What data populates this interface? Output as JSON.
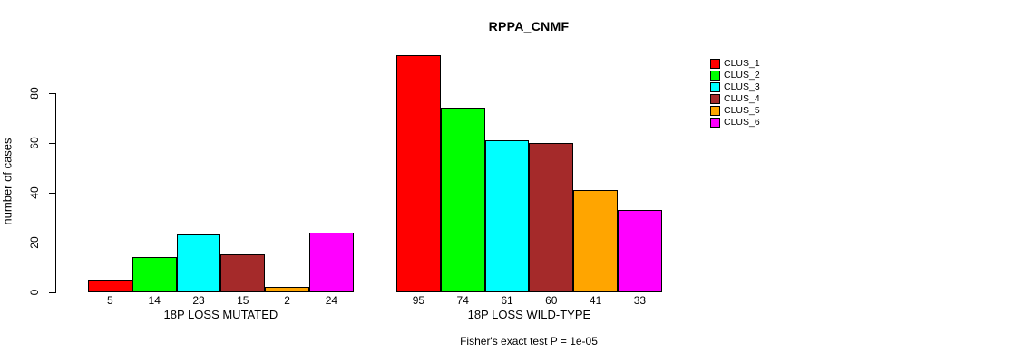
{
  "chart_data": {
    "type": "bar",
    "title": "RPPA_CNMF",
    "ylabel": "number of cases",
    "xlabel": "",
    "categories": [
      "18P LOSS MUTATED",
      "18P LOSS WILD-TYPE"
    ],
    "series": [
      {
        "name": "CLUS_1",
        "color": "#FF0000",
        "values": [
          5,
          95
        ]
      },
      {
        "name": "CLUS_2",
        "color": "#00FF00",
        "values": [
          14,
          74
        ]
      },
      {
        "name": "CLUS_3",
        "color": "#00FFFF",
        "values": [
          23,
          61
        ]
      },
      {
        "name": "CLUS_4",
        "color": "#A52A2A",
        "values": [
          15,
          60
        ]
      },
      {
        "name": "CLUS_5",
        "color": "#FFA500",
        "values": [
          2,
          41
        ]
      },
      {
        "name": "CLUS_6",
        "color": "#FF00FF",
        "values": [
          24,
          33
        ]
      }
    ],
    "yticks": [
      0,
      20,
      40,
      60,
      80
    ],
    "ylim": [
      0,
      97
    ],
    "grid": false,
    "legend_position": "top-right",
    "bar_value_labels_shown": true,
    "footnote": "Fisher's exact test P = 1e-05",
    "axis_color": "#000000",
    "background_color": "#FFFFFF"
  }
}
